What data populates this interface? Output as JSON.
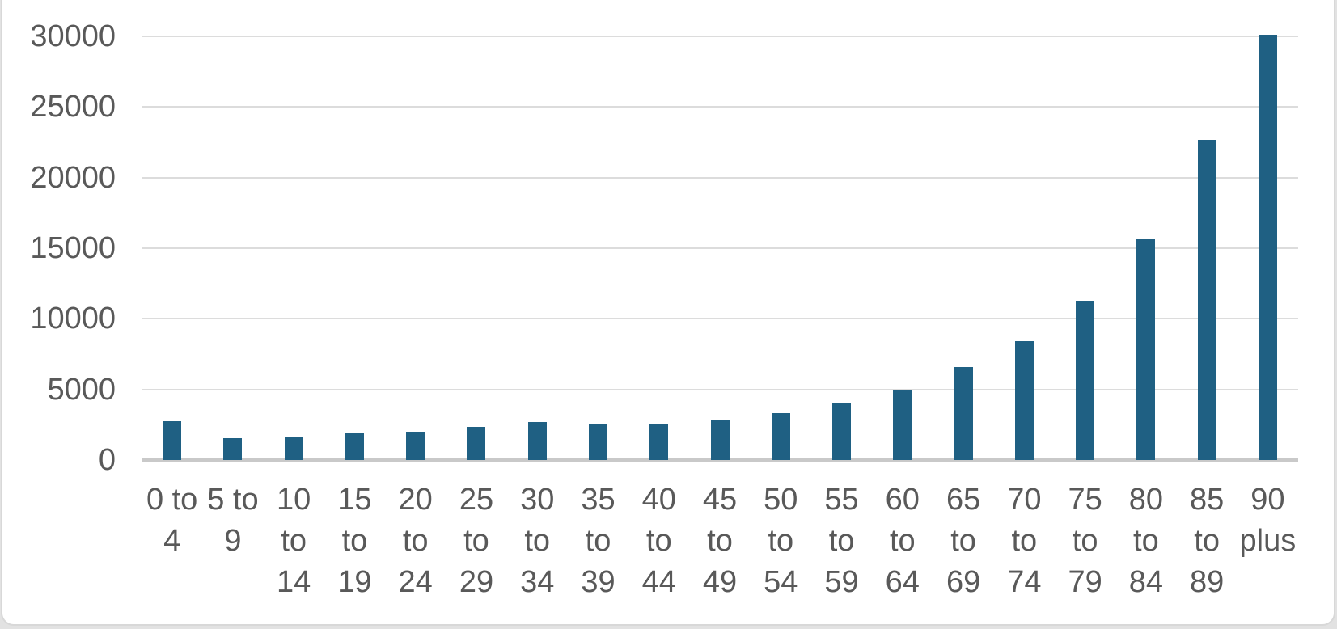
{
  "chart_data": {
    "type": "bar",
    "title": "",
    "xlabel": "",
    "ylabel": "",
    "categories": [
      "0 to 4",
      "5 to 9",
      "10 to 14",
      "15 to 19",
      "20 to 24",
      "25 to 29",
      "30 to 34",
      "35 to 39",
      "40 to 44",
      "45 to 49",
      "50 to 54",
      "55 to 59",
      "60 to 64",
      "65 to 69",
      "70 to 74",
      "75 to 79",
      "80 to 84",
      "85 to 89",
      "90 plus"
    ],
    "category_lines": [
      [
        "0 to",
        "4"
      ],
      [
        "5 to",
        "9"
      ],
      [
        "10",
        "to",
        "14"
      ],
      [
        "15",
        "to",
        "19"
      ],
      [
        "20",
        "to",
        "24"
      ],
      [
        "25",
        "to",
        "29"
      ],
      [
        "30",
        "to",
        "34"
      ],
      [
        "35",
        "to",
        "39"
      ],
      [
        "40",
        "to",
        "44"
      ],
      [
        "45",
        "to",
        "49"
      ],
      [
        "50",
        "to",
        "54"
      ],
      [
        "55",
        "to",
        "59"
      ],
      [
        "60",
        "to",
        "64"
      ],
      [
        "65",
        "to",
        "69"
      ],
      [
        "70",
        "to",
        "74"
      ],
      [
        "75",
        "to",
        "79"
      ],
      [
        "80",
        "to",
        "84"
      ],
      [
        "85",
        "to",
        "89"
      ],
      [
        "90",
        "plus"
      ]
    ],
    "values": [
      2750,
      1550,
      1650,
      1900,
      2000,
      2350,
      2700,
      2600,
      2550,
      2850,
      3350,
      4000,
      4950,
      6600,
      8400,
      11300,
      15650,
      22700,
      30100
    ],
    "ylim": [
      0,
      30000
    ],
    "yticks": [
      0,
      5000,
      10000,
      15000,
      20000,
      25000,
      30000
    ],
    "ytick_labels": [
      "0",
      "5000",
      "10000",
      "15000",
      "20000",
      "25000",
      "30000"
    ],
    "grid": "horizontal",
    "legend": "none",
    "colors": {
      "bar": "#1f6083",
      "axis_text": "#595959",
      "gridline": "#dcdcdc",
      "axis_line": "#c9c9c9",
      "frame_border": "#d8d8d8",
      "background": "#ffffff",
      "page_background": "#e2e2e2"
    }
  }
}
